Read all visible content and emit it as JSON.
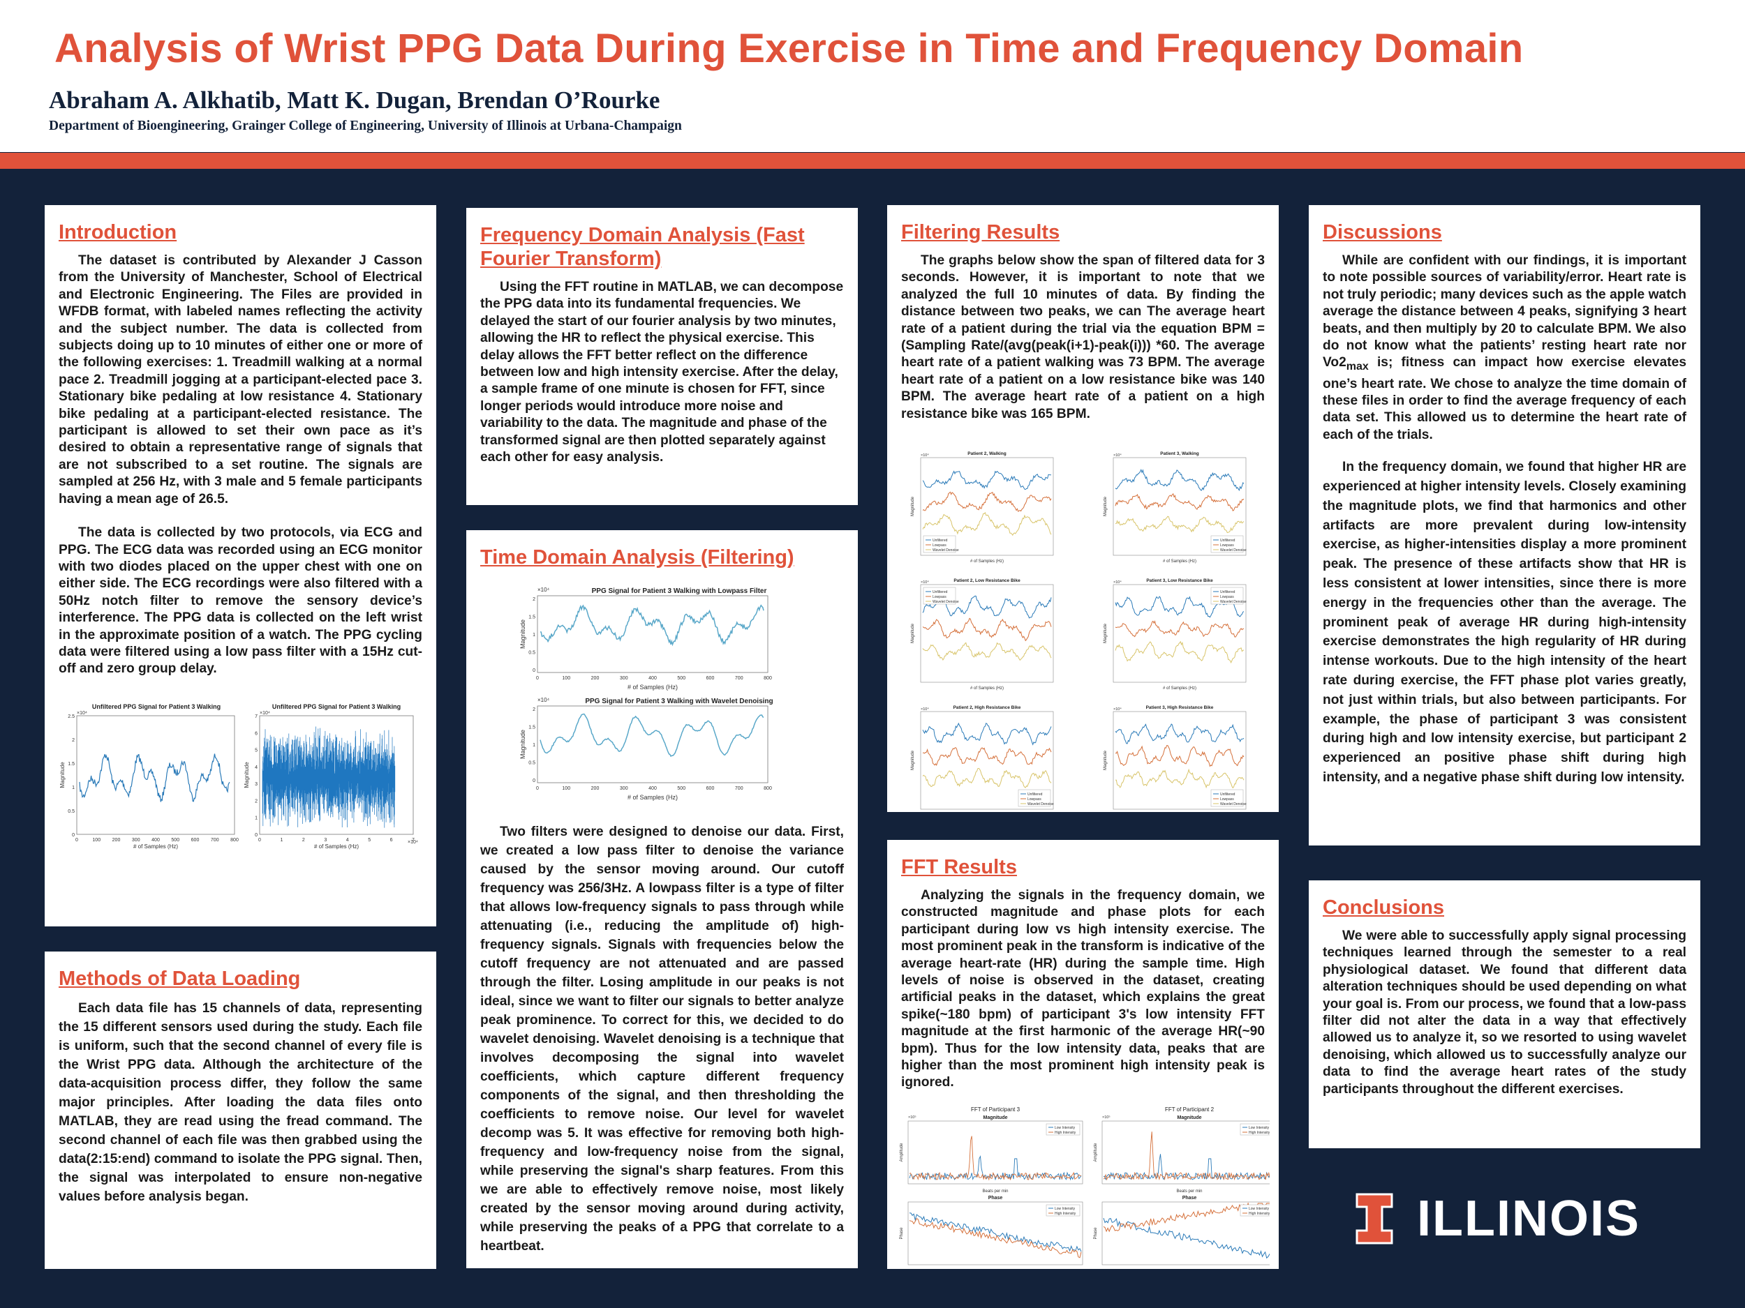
{
  "header": {
    "title": "Analysis of Wrist PPG Data During Exercise in Time and Frequency Domain",
    "authors": "Abraham A. Alkhatib, Matt K. Dugan, Brendan O’Rourke",
    "affiliation": "Department of Bioengineering, Grainger College of Engineering, University of Illinois at Urbana-Champaign"
  },
  "introduction": {
    "heading": "Introduction",
    "p1": "The dataset is contributed by Alexander J Casson from the University of Manchester, School of Electrical and Electronic Engineering. The Files are provided in WFDB format, with labeled names reflecting the activity and the subject number. The data is collected from subjects doing up to 10 minutes of either one or more of the following exercises: 1. Treadmill walking at a normal pace 2. Treadmill jogging at a participant-elected pace 3. Stationary bike pedaling at low resistance 4. Stationary bike pedaling at a participant-elected resistance. The participant is allowed to set their own pace as it’s desired to obtain a representative range of signals that are not subscribed to a set routine. The signals are sampled at 256 Hz, with 3 male and 5 female participants having a mean age of 26.5.",
    "p2": "The data is collected by two protocols, via ECG and PPG. The ECG data was recorded using an ECG monitor with two diodes placed on the upper chest with one on either side. The ECG recordings were also filtered with a 50Hz notch filter to remove the sensory device’s interference. The PPG data is collected on the left wrist in the approximate position of a watch. The PPG cycling data were filtered using a low pass filter with a 15Hz cut-off and zero group delay.",
    "fig1_title": "Unfiltered PPG Signal for Patient 3 Walking",
    "fig2_title": "Unfiltered PPG Signal for Patient 3 Walking",
    "fig_xlabel1": "# of Samples (Hz)",
    "fig_xlabel2": "# of Samples (Hz)",
    "fig_ylabel": "Magnitude",
    "fig1_xticks": [
      "0",
      "100",
      "200",
      "300",
      "400",
      "500",
      "600",
      "700",
      "800"
    ],
    "fig1_yticks": [
      "2.5",
      "2",
      "1.5",
      "1",
      "0.5",
      "0"
    ],
    "fig2_xticks": [
      "0",
      "1",
      "2",
      "3",
      "4",
      "5",
      "6",
      "7"
    ],
    "fig2_yticks": [
      "7",
      "6",
      "5",
      "4",
      "3",
      "2",
      "1",
      "0"
    ],
    "exp_y": "×10⁴",
    "exp_x": "×10⁴"
  },
  "methods": {
    "heading": "Methods of Data Loading",
    "p1": "Each data file has 15 channels of data, representing the 15 different sensors used during the study. Each file is uniform, such that the second channel of every file is the Wrist PPG data. Although the architecture of the data-acquisition process differ, they follow the same major principles. After loading the data files onto MATLAB, they are read using the fread command. The second channel of each file was then grabbed using the data(2:15:end) command to isolate the PPG signal. Then, the signal was interpolated to ensure non-negative values before analysis began."
  },
  "frequency": {
    "heading": "Frequency Domain Analysis (Fast Fourier Transform)",
    "p1": "Using the FFT routine in MATLAB, we can decompose the PPG data into its fundamental frequencies. We delayed the start of our fourier analysis by two minutes, allowing the HR to reflect the physical exercise. This delay allows the FFT better reflect on the difference between low and high intensity exercise. After the delay, a sample frame of one minute is chosen for FFT, since longer periods would introduce more noise and variability to the data. The magnitude and phase of the transformed signal are then plotted separately against each other for easy analysis."
  },
  "time_domain": {
    "heading": "Time Domain Analysis (Filtering)",
    "fig1_title": "PPG Signal for Patient 3 Walking with Lowpass Filter",
    "fig2_title": "PPG Signal for Patient 3 Walking with Wavelet Denoising",
    "xlabel1": "# of Samples (Hz)",
    "xlabel2": "# of Samples (Hz)",
    "ylabel": "Magnitude",
    "xticks": [
      "0",
      "100",
      "200",
      "300",
      "400",
      "500",
      "600",
      "700",
      "800"
    ],
    "yticks": [
      "2",
      "1.5",
      "1",
      "0.5",
      "0"
    ],
    "exp": "×10⁴",
    "p1": "Two filters were designed to denoise our data. First, we created a low pass filter to denoise the variance caused by the sensor moving around. Our cutoff frequency was 256/3Hz. A lowpass filter is a type of filter that allows low-frequency signals to pass through while attenuating (i.e., reducing the amplitude of) high-frequency signals.   Signals with frequencies below the cutoff frequency are not attenuated and are passed through the filter. Losing amplitude in our peaks is not ideal, since we want to filter our signals to better analyze peak prominence. To correct for this, we decided to do wavelet denoising. Wavelet denoising is a technique that involves decomposing the signal into wavelet coefficients, which capture different frequency components of the signal, and then thresholding the coefficients to remove noise. Our level for wavelet decomp was 5. It was effective for removing both high-frequency and low-frequency noise from the signal, while preserving the signal's sharp features. From this we are able to effectively remove noise, most likely created by the sensor moving around during activity, while preserving the peaks of a PPG that correlate to a heartbeat."
  },
  "filtering": {
    "heading": "Filtering Results",
    "p1": "The graphs below show the span of filtered data for 3 seconds. However, it is important to note that we analyzed the full 10 minutes of data. By finding the distance between two peaks, we can The average heart rate of a patient during the trial via the equation BPM = (Sampling Rate/(avg(peak(i+1)-peak(i))) *60. The average heart rate of a patient walking was 73 BPM. The average heart rate of a patient on a low resistance bike was 140 BPM. The average heart rate of a patient on a high resistance bike was 165 BPM.",
    "grid_titles": [
      "Patient 2, Walking",
      "Patient 3, Walking",
      "Patient 2, Low Resistance Bike",
      "Patient 3, Low Resistance Bike",
      "Patient 2, High Resistance Bike",
      "Patient 3, High Resistance Bike"
    ],
    "legend": [
      "Unfiltered",
      "Lowpass",
      "Wavelet Denoise"
    ],
    "xlabel": "# of Samples (Hz)",
    "ylabel": "Magnitude",
    "exp": "×10⁴"
  },
  "fft_results": {
    "heading": "FFT Results",
    "p1": "Analyzing the signals in the frequency domain, we constructed magnitude and phase plots for each participant during low vs high intensity exercise. The most prominent peak in the transform is indicative of the average heart-rate (HR) during the sample time. High levels of noise is observed in the dataset, creating artificial peaks in the dataset, which explains the great spike(~180 bpm) of participant 3's low intensity FFT magnitude at the first harmonic of the average HR(~90 bpm). Thus for the low intensity data, peaks that are higher than the most prominent high intensity peak is ignored.",
    "fig_titles": [
      "FFT of Participant 3",
      "FFT of Participant 2"
    ],
    "sub_mag": "Magnitude",
    "sub_phase": "Phase",
    "legend": [
      "Low Intensity",
      "High Intensity"
    ],
    "xlabel": "Beats per min",
    "ylabel_mag": "Amplitude",
    "ylabel_phase": "Phase",
    "exp": "×10⁵"
  },
  "discussions": {
    "heading": "Discussions",
    "p1_before": "While are confident with our findings, it is important to note possible sources of variability/error. Heart rate is not truly periodic; many devices such as the apple watch average the distance between 4 peaks, signifying 3 heart beats, and then multiply by 20 to calculate BPM. We also do not know what the patients’ resting heart rate nor Vo2",
    "p1_sub": "max",
    "p1_after": " is; fitness can impact how exercise elevates one’s heart rate. We chose to analyze the time  domain of these files in order to find the average frequency of each data set. This allowed us to determine the heart rate of each of the trials.",
    "p2": "In the frequency domain, we found that higher HR are experienced at higher intensity levels. Closely examining the magnitude plots, we find that harmonics and other artifacts are more prevalent during low-intensity exercise, as higher-intensities display a more prominent peak. The presence of these artifacts show that HR is less consistent at lower intensities, since there is more energy in the frequencies other than the average. The prominent peak of average HR during high-intensity exercise demonstrates the high regularity of HR during intense workouts. Due to the high intensity of the heart rate during exercise, the FFT phase plot varies greatly, not just within trials, but also between participants. For example, the phase of participant 3 was consistent during high and low intensity exercise, but participant 2 experienced an positive phase shift during high intensity, and a negative phase shift during low intensity."
  },
  "conclusions": {
    "heading": "Conclusions",
    "p1": "We were able to successfully apply signal processing techniques learned through the semester to a real physiological dataset. We found that different data alteration techniques should be used depending on what your goal is. From our process, we found that a low-pass filter did not alter the data in a way that effectively allowed us to analyze it, so we resorted to using wavelet denoising, which allowed us to successfully analyze our data to find the average heart rates of the study participants throughout the different exercises."
  },
  "logo": {
    "text": "ILLINOIS",
    "icon": "block-i-icon"
  },
  "colors": {
    "accent": "#e0523a",
    "navy": "#13223a",
    "line_blue": "#2a7ab8",
    "line_orange": "#d5703a",
    "line_yellow": "#d8c46a"
  }
}
